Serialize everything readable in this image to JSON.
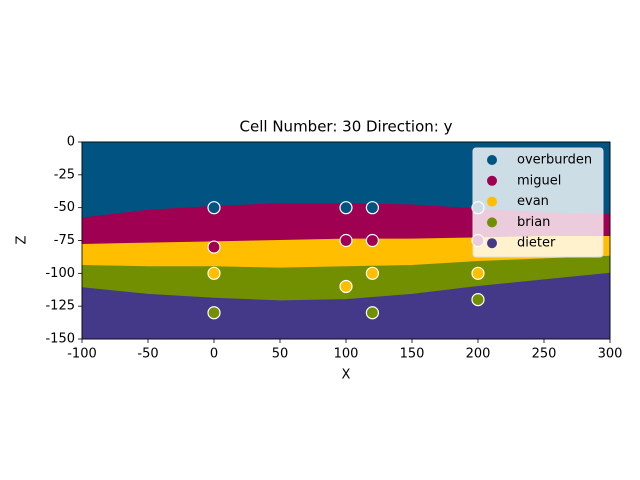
{
  "chart_data": {
    "type": "layers",
    "title": "Cell Number: 30 Direction: y",
    "xlabel": "X",
    "ylabel": "Z",
    "xlim": [
      -100,
      300
    ],
    "ylim": [
      -150,
      0
    ],
    "xticks": [
      -100,
      -50,
      0,
      50,
      100,
      150,
      200,
      250,
      300
    ],
    "yticks": [
      0,
      -25,
      -50,
      -75,
      -100,
      -125,
      -150
    ],
    "legend": "upper right",
    "x": [
      -100,
      -50,
      0,
      50,
      100,
      150,
      200,
      250,
      300
    ],
    "series": [
      {
        "name": "overburden",
        "color": "#015482",
        "values": [
          0,
          0,
          0,
          0,
          0,
          0,
          0,
          0,
          0
        ],
        "point_x": [
          0,
          100,
          120,
          200
        ],
        "point_z": [
          -50,
          -50,
          -50,
          -50
        ]
      },
      {
        "name": "miguel",
        "color": "#9f0052",
        "values": [
          -58,
          -52,
          -49,
          -47,
          -47,
          -48,
          -51,
          -54,
          -55
        ],
        "point_x": [
          0,
          100,
          120,
          200
        ],
        "point_z": [
          -80,
          -75,
          -75,
          -75
        ]
      },
      {
        "name": "evan",
        "color": "#ffbe00",
        "values": [
          -78,
          -77,
          -76,
          -75,
          -74,
          -74,
          -73,
          -72,
          -72
        ],
        "point_x": [
          0,
          100,
          120,
          200
        ],
        "point_z": [
          -100,
          -110,
          -100,
          -100
        ]
      },
      {
        "name": "brian",
        "color": "#728f02",
        "values": [
          -94,
          -95,
          -95,
          -96,
          -95,
          -94,
          -91,
          -89,
          -87
        ],
        "point_x": [
          0,
          120,
          200
        ],
        "point_z": [
          -130,
          -130,
          -120
        ]
      },
      {
        "name": "dieter",
        "color": "#443988",
        "values": [
          -111,
          -116,
          -119,
          -121,
          -120,
          -116,
          -110,
          -105,
          -100
        ],
        "point_x": [],
        "point_z": []
      }
    ]
  }
}
